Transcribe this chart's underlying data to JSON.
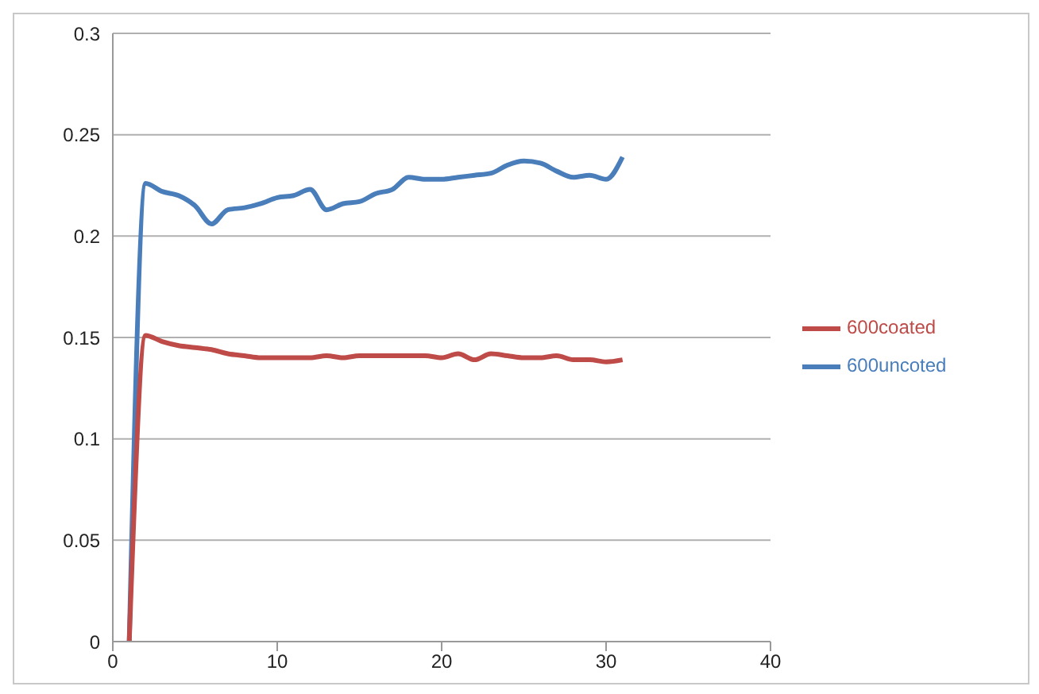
{
  "chart_data": {
    "type": "line",
    "x": [
      1,
      2,
      3,
      4,
      5,
      6,
      7,
      8,
      9,
      10,
      11,
      12,
      13,
      14,
      15,
      16,
      17,
      18,
      19,
      20,
      21,
      22,
      23,
      24,
      25,
      26,
      27,
      28,
      29,
      30,
      31
    ],
    "series": [
      {
        "name": "600uncoted",
        "color": "#4a7ebb",
        "values": [
          0,
          0.226,
          0.222,
          0.22,
          0.215,
          0.206,
          0.213,
          0.214,
          0.216,
          0.219,
          0.22,
          0.223,
          0.213,
          0.216,
          0.217,
          0.221,
          0.223,
          0.229,
          0.228,
          0.228,
          0.229,
          0.23,
          0.231,
          0.235,
          0.237,
          0.236,
          0.232,
          0.229,
          0.23,
          0.228,
          0.239
        ]
      },
      {
        "name": "600coated",
        "color": "#be4b48",
        "values": [
          0,
          0.151,
          0.148,
          0.146,
          0.145,
          0.144,
          0.142,
          0.141,
          0.14,
          0.14,
          0.14,
          0.14,
          0.141,
          0.14,
          0.141,
          0.141,
          0.141,
          0.141,
          0.141,
          0.14,
          0.142,
          0.139,
          0.142,
          0.141,
          0.14,
          0.14,
          0.141,
          0.139,
          0.139,
          0.138,
          0.139
        ]
      }
    ],
    "xlim": [
      0,
      40
    ],
    "xticks": [
      0,
      10,
      20,
      30,
      40
    ],
    "ylim": [
      0,
      0.3
    ],
    "yticks": [
      0,
      0.05,
      0.1,
      0.15,
      0.2,
      0.25,
      0.3
    ],
    "grid": "y",
    "legend": "right",
    "marker": "none",
    "line_style": "solid"
  }
}
